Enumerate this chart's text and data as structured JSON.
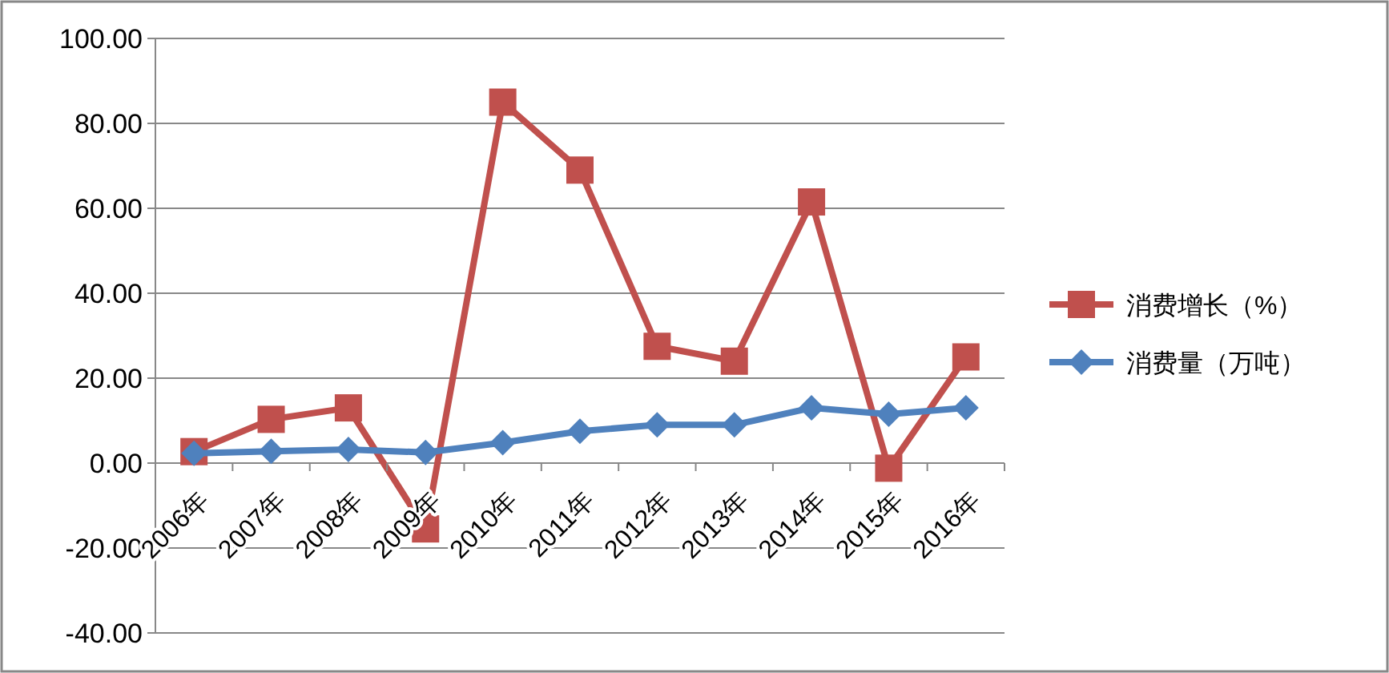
{
  "chart_data": {
    "type": "line",
    "categories": [
      "2006年",
      "2007年",
      "2008年",
      "2009年",
      "2010年",
      "2011年",
      "2012年",
      "2013年",
      "2014年",
      "2015年",
      "2016年"
    ],
    "series": [
      {
        "name": "消费增长（%）",
        "color": "#c0504d",
        "marker": "square",
        "values": [
          2.7,
          10.3,
          13,
          -15.5,
          85,
          69,
          27.5,
          24,
          61.5,
          -1.2,
          25
        ]
      },
      {
        "name": "消费量（万吨）",
        "color": "#4f81bd",
        "marker": "diamond",
        "values": [
          2.3,
          2.8,
          3.2,
          2.5,
          4.8,
          7.5,
          9,
          9,
          13,
          11.5,
          13
        ]
      }
    ],
    "ylim": [
      -40,
      100
    ],
    "yticks": [
      {
        "value": -40,
        "label": "-40.00"
      },
      {
        "value": -20,
        "label": "-20.00"
      },
      {
        "value": 0,
        "label": "0.00"
      },
      {
        "value": 20,
        "label": "20.00"
      },
      {
        "value": 40,
        "label": "40.00"
      },
      {
        "value": 60,
        "label": "60.00"
      },
      {
        "value": 80,
        "label": "80.00"
      },
      {
        "value": 100,
        "label": "100.00"
      }
    ],
    "grid": "y",
    "legend": "right"
  }
}
